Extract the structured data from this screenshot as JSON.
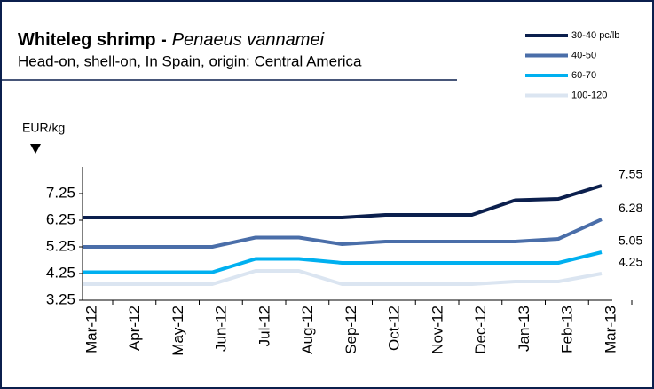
{
  "chart_data": {
    "type": "line",
    "title": "Whiteleg shrimp -",
    "title_species": "Penaeus vannamei",
    "subtitle": "Head-on, shell-on, In Spain, origin: Central America",
    "y_label": "EUR/kg",
    "categories": [
      "Mar-12",
      "Apr-12",
      "May-12",
      "Jun-12",
      "Jul-12",
      "Aug-12",
      "Sep-12",
      "Oct-12",
      "Nov-12",
      "Dec-12",
      "Jan-13",
      "Feb-13",
      "Mar-13"
    ],
    "series": [
      {
        "name": "30-40 pc/lb",
        "color": "#0b1f4d",
        "values": [
          6.35,
          6.35,
          6.35,
          6.35,
          6.35,
          6.35,
          6.35,
          6.45,
          6.45,
          6.45,
          7.0,
          7.05,
          7.55
        ]
      },
      {
        "name": "40-50",
        "color": "#4a6ea9",
        "values": [
          5.25,
          5.25,
          5.25,
          5.25,
          5.6,
          5.6,
          5.35,
          5.45,
          5.45,
          5.45,
          5.45,
          5.55,
          6.28
        ]
      },
      {
        "name": "60-70",
        "color": "#00b0f0",
        "values": [
          4.3,
          4.3,
          4.3,
          4.3,
          4.8,
          4.8,
          4.65,
          4.65,
          4.65,
          4.65,
          4.65,
          4.65,
          5.05
        ]
      },
      {
        "name": "100-120",
        "color": "#dbe5f1",
        "values": [
          3.85,
          3.85,
          3.85,
          3.85,
          4.35,
          4.35,
          3.85,
          3.85,
          3.85,
          3.85,
          3.95,
          3.95,
          4.25
        ]
      }
    ],
    "ylim": [
      3.25,
      8.25
    ],
    "yticks": [
      3.25,
      4.25,
      5.25,
      6.25,
      7.25
    ],
    "legend": "top-right"
  }
}
